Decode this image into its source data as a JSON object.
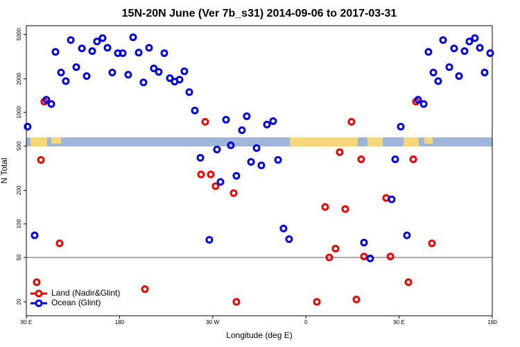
{
  "chart_data": {
    "type": "scatter",
    "title": "15N-20N June (Ver 7b_s31)   2014-09-06 to 2017-03-31",
    "x_label": "Longitude (deg E)",
    "y_label": "N Total",
    "xlim": [
      90,
      450
    ],
    "xticks": [
      {
        "value": 90,
        "label": "90 E"
      },
      180,
      {
        "value": 270,
        "label": "90 W"
      },
      {
        "value": 360,
        "label": "0"
      },
      {
        "value": 450,
        "label": "90 E"
      },
      {
        "value": 540,
        "label": "180"
      }
    ],
    "ylim": [
      15,
      6000
    ],
    "log_y": true,
    "yticks": [
      20,
      50,
      100,
      200,
      500,
      1000,
      2000,
      5000
    ],
    "hline": 50,
    "legend": "lower left",
    "series": [
      {
        "name": "Land (Nadir&Glint)",
        "color": "#ee0000",
        "x": [
          103.9,
          101.3,
          98.0,
          115.7,
          181.6,
          228.2,
          225.0,
          232.5,
          236.2,
          250.2,
          252.3,
          314.5,
          320.9,
          324.1,
          328.9,
          332.1,
          336.4,
          341.2,
          345.0,
          348.7,
          350.9,
          368.0,
          371.3,
          385.2,
          389.0,
          391.1,
          403.4
        ],
        "values": [
          1250,
          375,
          30,
          67,
          26,
          824,
          278,
          278,
          218,
          189,
          20,
          20,
          142,
          50,
          60,
          440,
          136,
          824,
          21,
          380,
          51,
          171,
          51,
          30,
          380,
          1250,
          67
        ]
      },
      {
        "name": "Ocean (Glint)",
        "color": "#0000dd",
        "x": [
          91,
          96.4,
          105.5,
          109.3,
          112.5,
          116.8,
          120.5,
          124.3,
          128.6,
          132.9,
          136.6,
          140.9,
          144.6,
          148.9,
          152.7,
          156.4,
          160.7,
          164.5,
          168.7,
          172.5,
          176.8,
          180.5,
          184.8,
          188.5,
          192.3,
          196.6,
          200.9,
          204.6,
          208.4,
          212.1,
          215.9,
          220.2,
          224.5,
          231.4,
          237.3,
          240.0,
          244.3,
          248.0,
          252.3,
          256.6,
          260.3,
          263.6,
          267.9,
          271.6,
          275.9,
          280.7,
          284.5,
          288.7,
          293.0,
          350.9,
          355.7,
          372.3,
          375.0,
          379.3,
          384.1,
          392.7,
          397.0,
          400.7,
          404.5,
          408.2,
          412.0,
          416.8,
          420.5,
          424.3,
          428.6,
          432.3,
          436.6,
          440.4,
          444.1,
          448.4
        ],
        "values": [
          745,
          79,
          1300,
          1190,
          3490,
          2280,
          1910,
          4460,
          2550,
          3750,
          2120,
          3550,
          4330,
          4640,
          3800,
          2280,
          3400,
          3400,
          2180,
          4720,
          3440,
          1860,
          3800,
          2480,
          2310,
          3400,
          2030,
          1890,
          1970,
          2340,
          1520,
          1040,
          392,
          72,
          465,
          238,
          860,
          507,
          270,
          693,
          925,
          360,
          479,
          335,
          778,
          836,
          375,
          91,
          73,
          68,
          49,
          166,
          380,
          745,
          79,
          1300,
          1190,
          3490,
          2280,
          1910,
          4460,
          2550,
          3750,
          2120,
          3550,
          4330,
          4640,
          3800,
          2280,
          3400
        ]
      }
    ]
  }
}
